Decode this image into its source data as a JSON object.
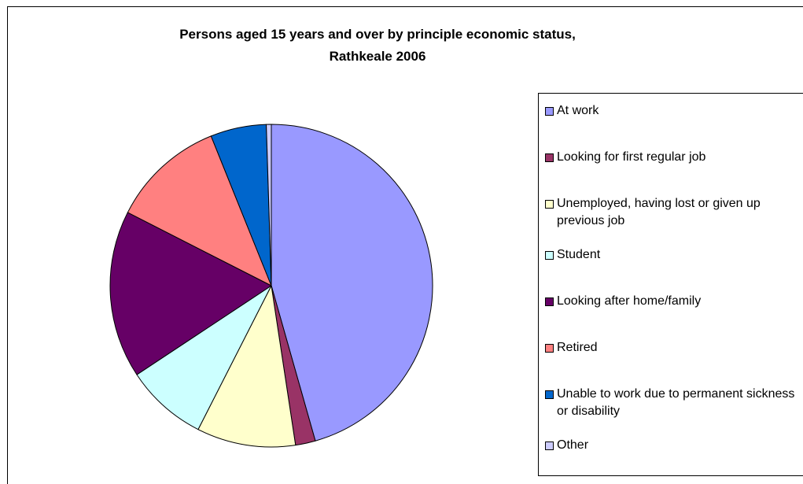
{
  "chart_data": {
    "type": "pie",
    "title_lines": [
      "Persons aged 15 years and over by principle economic status,",
      "Rathkeale 2006"
    ],
    "start_angle_deg": 0,
    "direction": "clockwise",
    "legend_position": "right",
    "slices": [
      {
        "label": "At work",
        "value": 45.6,
        "color": "#9999ff"
      },
      {
        "label": "Looking for first regular job",
        "value": 2.0,
        "color": "#993366"
      },
      {
        "label": "Unemployed, having lost or given up previous job",
        "value": 9.9,
        "color": "#ffffcc"
      },
      {
        "label": "Student",
        "value": 8.2,
        "color": "#ccffff"
      },
      {
        "label": "Looking after home/family",
        "value": 16.8,
        "color": "#660066"
      },
      {
        "label": "Retired",
        "value": 11.4,
        "color": "#ff8080"
      },
      {
        "label": "Unable to work due to permanent sickness or disability",
        "value": 5.6,
        "color": "#0066cc"
      },
      {
        "label": "Other",
        "value": 0.5,
        "color": "#ccccff"
      }
    ]
  }
}
